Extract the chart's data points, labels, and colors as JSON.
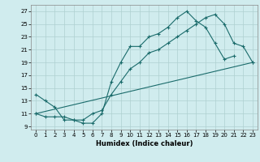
{
  "title": "",
  "xlabel": "Humidex (Indice chaleur)",
  "ylabel": "",
  "bg_color": "#d0ecee",
  "grid_color": "#aed0d0",
  "line_color": "#1a6b6b",
  "xlim": [
    -0.5,
    23.5
  ],
  "ylim": [
    8.5,
    28
  ],
  "yticks": [
    9,
    11,
    13,
    15,
    17,
    19,
    21,
    23,
    25,
    27
  ],
  "xticks": [
    0,
    1,
    2,
    3,
    4,
    5,
    6,
    7,
    8,
    9,
    10,
    11,
    12,
    13,
    14,
    15,
    16,
    17,
    18,
    19,
    20,
    21,
    22,
    23
  ],
  "line1_x": [
    0,
    1,
    2,
    3,
    4,
    5,
    6,
    7,
    8,
    9,
    10,
    11,
    12,
    13,
    14,
    15,
    16,
    17,
    18,
    19,
    20,
    21
  ],
  "line1_y": [
    14,
    13,
    12,
    10,
    10,
    9.5,
    9.5,
    11,
    16,
    19,
    21.5,
    21.5,
    23,
    23.5,
    24.5,
    26,
    27,
    25.5,
    24.5,
    22,
    19.5,
    20
  ],
  "line2_x": [
    0,
    1,
    2,
    3,
    4,
    5,
    6,
    7,
    8,
    9,
    10,
    11,
    12,
    13,
    14,
    15,
    16,
    17,
    18,
    19,
    20,
    21,
    22,
    23
  ],
  "line2_y": [
    11,
    10.5,
    10.5,
    10.5,
    10,
    10,
    11,
    11.5,
    14,
    16,
    18,
    19,
    20.5,
    21,
    22,
    23,
    24,
    25,
    26,
    26.5,
    25,
    22,
    21.5,
    19
  ],
  "line3_x": [
    0,
    23
  ],
  "line3_y": [
    11,
    19
  ]
}
